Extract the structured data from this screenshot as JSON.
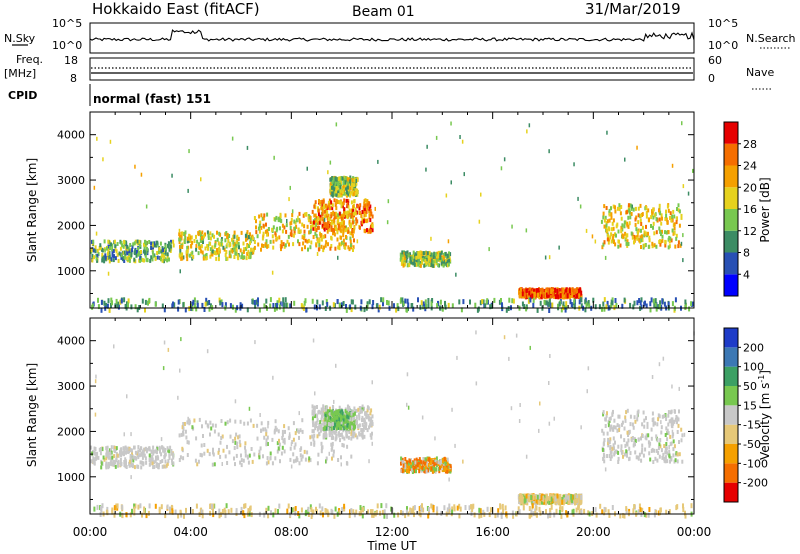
{
  "header": {
    "site": "Hokkaido East (fitACF)",
    "beam": "Beam 01",
    "date": "31/Mar/2019"
  },
  "nsky": {
    "label": "N.Sky",
    "ticks": [
      "10^5",
      "10^0"
    ]
  },
  "nsearch": {
    "label": "N.Search",
    "ticks": [
      "10^5",
      "10^0"
    ]
  },
  "freq": {
    "label_line1": "Freq.",
    "label_line2": "[MHz]",
    "ticks": [
      "18",
      "8"
    ]
  },
  "nave": {
    "label": "Nave",
    "ticks": [
      "60",
      "0"
    ]
  },
  "cpid": {
    "label": "CPID",
    "value": "normal (fast) 151"
  },
  "chart_data": [
    {
      "type": "heatmap",
      "name": "power-panel",
      "ylabel": "Slant Range [km]",
      "xlabel": "",
      "x_ticks": [
        "00:00",
        "04:00",
        "08:00",
        "12:00",
        "16:00",
        "20:00",
        "00:00"
      ],
      "x_range_hours": [
        0,
        24
      ],
      "y_ticks": [
        1000,
        2000,
        3000,
        4000
      ],
      "y_range_km": [
        180,
        4500
      ],
      "colorbar": {
        "label": "Power [dB]",
        "ticks": [
          "4",
          "8",
          "12",
          "16",
          "20",
          "24",
          "28"
        ],
        "range": [
          0,
          30
        ],
        "colors": [
          "#0000ff",
          "#2850b4",
          "#3c8c64",
          "#78c850",
          "#e6d21e",
          "#f5a000",
          "#f56e00",
          "#e60000"
        ]
      },
      "echo_regions": [
        {
          "t0": 0.0,
          "t1": 3.3,
          "r0": 1250,
          "r1": 1700,
          "level": 12
        },
        {
          "t0": 3.5,
          "t1": 6.5,
          "r0": 1300,
          "r1": 1900,
          "level": 16
        },
        {
          "t0": 6.5,
          "t1": 10.5,
          "r0": 1500,
          "r1": 2300,
          "level": 18
        },
        {
          "t0": 8.8,
          "t1": 11.2,
          "r0": 1900,
          "r1": 2600,
          "level": 22
        },
        {
          "t0": 9.5,
          "t1": 10.6,
          "r0": 2700,
          "r1": 3100,
          "level": 14
        },
        {
          "t0": 12.3,
          "t1": 14.3,
          "r0": 1150,
          "r1": 1450,
          "level": 14
        },
        {
          "t0": 17.0,
          "t1": 19.5,
          "r0": 480,
          "r1": 640,
          "level": 24
        },
        {
          "t0": 20.3,
          "t1": 23.5,
          "r0": 1550,
          "r1": 2500,
          "level": 18
        },
        {
          "t0": 0.0,
          "t1": 24.0,
          "r0": 180,
          "r1": 420,
          "level": 10
        }
      ]
    },
    {
      "type": "heatmap",
      "name": "velocity-panel",
      "ylabel": "Slant Range [km]",
      "xlabel": "Time UT",
      "x_ticks": [
        "00:00",
        "04:00",
        "08:00",
        "12:00",
        "16:00",
        "20:00",
        "00:00"
      ],
      "x_range_hours": [
        0,
        24
      ],
      "y_ticks": [
        1000,
        2000,
        3000,
        4000
      ],
      "y_range_km": [
        180,
        4500
      ],
      "colorbar": {
        "label_main": "Velocity [m s",
        "label_sup": "-1",
        "label_end": "]",
        "ticks": [
          "200",
          "100",
          "50",
          "15",
          "-15",
          "-50",
          "-100",
          "-200"
        ],
        "colors": [
          "#1e3cc8",
          "#3c78b4",
          "#3ca064",
          "#78c850",
          "#c8c8c8",
          "#e6c878",
          "#f5a000",
          "#f56e00",
          "#e60000"
        ]
      },
      "echo_regions": [
        {
          "t0": 0.0,
          "t1": 3.3,
          "r0": 1250,
          "r1": 1700,
          "level": "ground"
        },
        {
          "t0": 3.5,
          "t1": 10.5,
          "r0": 1300,
          "r1": 2300,
          "level": "ground"
        },
        {
          "t0": 8.8,
          "t1": 11.2,
          "r0": 1900,
          "r1": 2600,
          "level": "ground"
        },
        {
          "t0": 9.3,
          "t1": 10.5,
          "r0": 2100,
          "r1": 2500,
          "level": "positive"
        },
        {
          "t0": 12.3,
          "t1": 14.3,
          "r0": 1150,
          "r1": 1450,
          "level": "mixed"
        },
        {
          "t0": 17.0,
          "t1": 19.5,
          "r0": 480,
          "r1": 640,
          "level": "weak-negative"
        },
        {
          "t0": 20.3,
          "t1": 23.5,
          "r0": 1350,
          "r1": 2500,
          "level": "ground"
        },
        {
          "t0": 0.0,
          "t1": 24.0,
          "r0": 180,
          "r1": 420,
          "level": "weak-negative"
        }
      ]
    }
  ]
}
